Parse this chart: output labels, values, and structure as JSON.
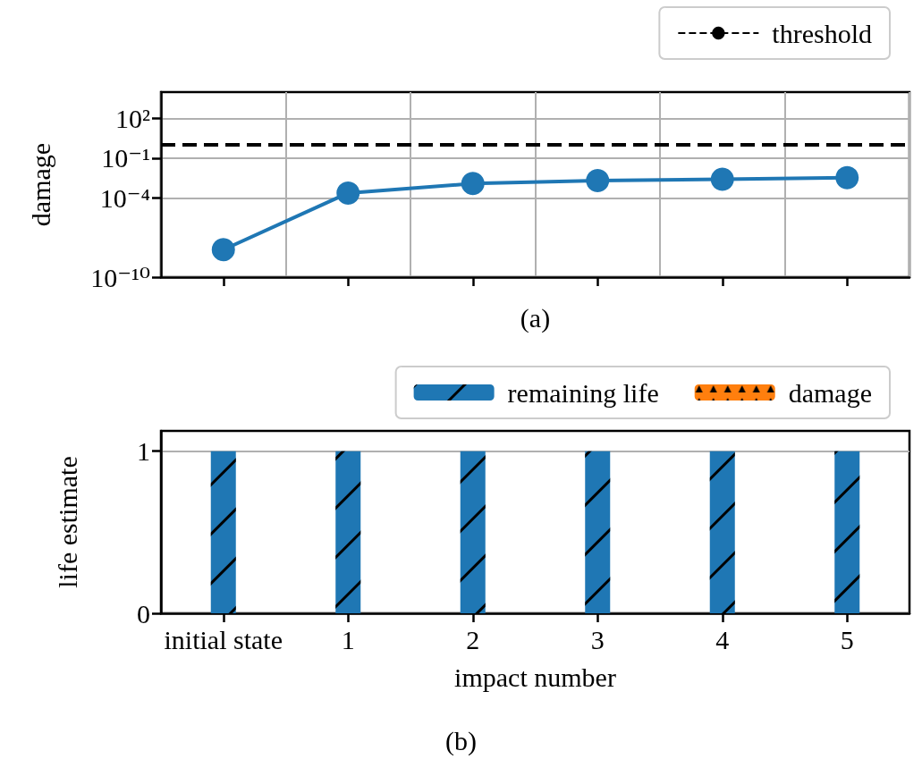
{
  "chart_data": [
    {
      "type": "line",
      "xlabel": "(a)",
      "ylabel": "damage",
      "categories": [
        null,
        null,
        null,
        null,
        null,
        null
      ],
      "series": [
        {
          "color": "#1f77b4",
          "values": [
            1.2e-08,
            0.00023,
            0.0012,
            0.002,
            0.0025,
            0.0034
          ]
        }
      ],
      "ylim": [
        1e-10,
        10000
      ],
      "yticks": [
        {
          "value": 1e-10,
          "label": "10⁻¹⁰"
        },
        {
          "value": 0.0001,
          "label": "10⁻⁴"
        },
        {
          "value": 0.1,
          "label": "10⁻¹"
        },
        {
          "value": 100,
          "label": "10²"
        }
      ],
      "log": "y",
      "grid": true,
      "marker": "circle",
      "line_style": "solid",
      "tick_labels": "y",
      "legend": "top right",
      "ref_lines": [
        {
          "axis": "y",
          "value": 1,
          "label": "threshold",
          "color": "#000000",
          "line_style": "dashed"
        }
      ]
    },
    {
      "type": "bar",
      "stacked": true,
      "xlabel": "impact number",
      "ylabel": "life estimate",
      "categories": [
        "initial state",
        "1",
        "2",
        "3",
        "4",
        "5"
      ],
      "series": [
        {
          "name": "remaining life",
          "color": "#1f77b4",
          "values": [
            1,
            1,
            1,
            1,
            1,
            1
          ]
        },
        {
          "name": "damage",
          "color": "#ff7f0e",
          "values": [
            0,
            0,
            0,
            0,
            0,
            0
          ]
        }
      ],
      "ylim": [
        0,
        1.125
      ],
      "yticks": [
        0,
        1
      ],
      "grid": "y",
      "legend": "top right",
      "annotations": [
        "(b)"
      ]
    }
  ]
}
